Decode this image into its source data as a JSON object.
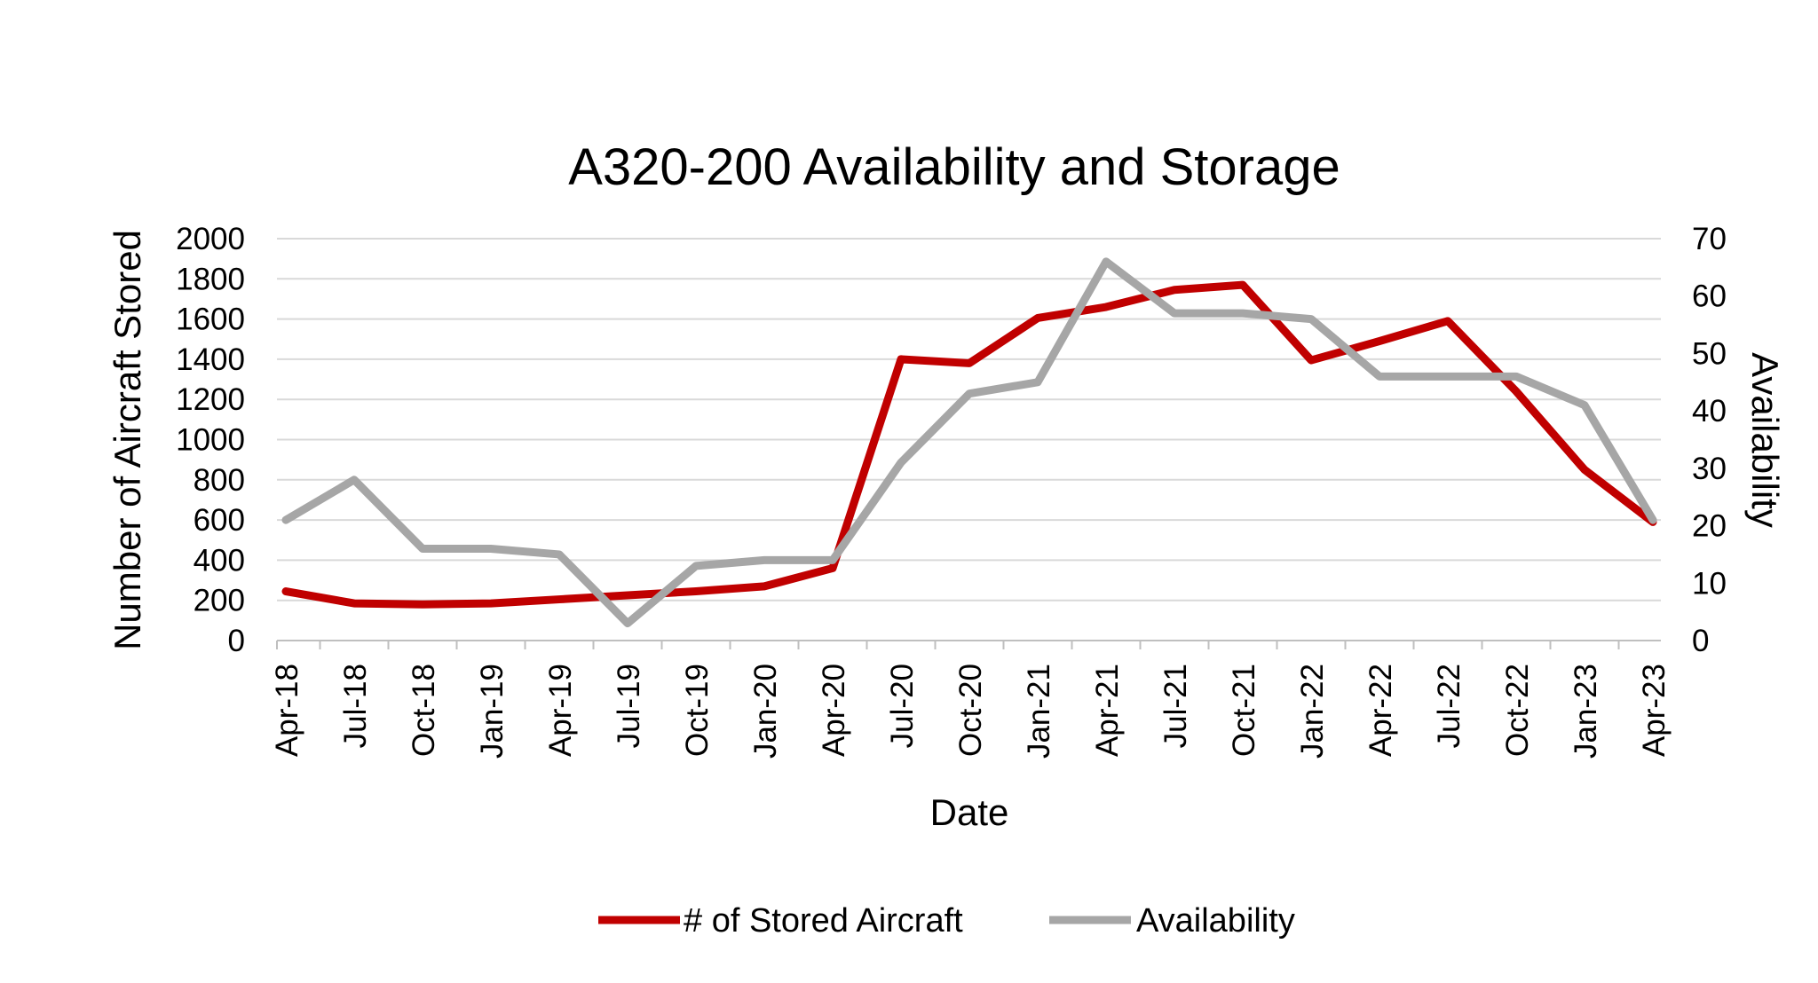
{
  "chart_data": {
    "type": "line",
    "title": "A320-200 Availability and Storage",
    "xlabel": "Date",
    "ylabel": "Number of Aircraft Stored",
    "y2label": "Availability",
    "ylim": [
      0,
      2000
    ],
    "y2lim": [
      0,
      70
    ],
    "yticks": [
      0,
      200,
      400,
      600,
      800,
      1000,
      1200,
      1400,
      1600,
      1800,
      2000
    ],
    "y2ticks": [
      0,
      10,
      20,
      30,
      40,
      50,
      60,
      70
    ],
    "grid": true,
    "legend_position": "bottom",
    "categories": [
      "Apr-18",
      "Jul-18",
      "Oct-18",
      "Jan-19",
      "Apr-19",
      "Jul-19",
      "Oct-19",
      "Jan-20",
      "Apr-20",
      "Jul-20",
      "Oct-20",
      "Jan-21",
      "Apr-21",
      "Jul-21",
      "Oct-21",
      "Jan-22",
      "Apr-22",
      "Jul-22",
      "Oct-22",
      "Jan-23",
      "Apr-23"
    ],
    "series": [
      {
        "name": "# of Stored Aircraft",
        "axis": "left",
        "color": "#c00000",
        "values": [
          245,
          185,
          180,
          185,
          205,
          225,
          245,
          270,
          360,
          1400,
          1380,
          1605,
          1660,
          1745,
          1770,
          1395,
          1490,
          1590,
          1240,
          850,
          590
        ]
      },
      {
        "name": "Availability",
        "axis": "right",
        "color": "#a6a6a6",
        "values": [
          21,
          28,
          16,
          16,
          15,
          3,
          13,
          14,
          14,
          31,
          43,
          45,
          66,
          57,
          57,
          56,
          46,
          46,
          46,
          41,
          21
        ]
      }
    ]
  }
}
